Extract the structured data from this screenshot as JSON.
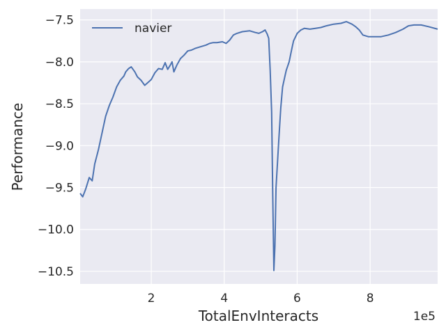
{
  "chart_data": {
    "type": "line",
    "xlabel": "TotalEnvInteracts",
    "ylabel": "Performance",
    "x_offset_label": "1e5",
    "xlim": [
      0.05,
      9.85
    ],
    "ylim": [
      -10.65,
      -7.37
    ],
    "x_ticks": [
      2,
      4,
      6,
      8
    ],
    "x_tick_labels": [
      "2",
      "4",
      "6",
      "8"
    ],
    "y_ticks": [
      -7.5,
      -8.0,
      -8.5,
      -9.0,
      -9.5,
      -10.0,
      -10.5
    ],
    "y_tick_labels": [
      "−7.5",
      "−8.0",
      "−8.5",
      "−9.0",
      "−9.5",
      "−10.0",
      "−10.5"
    ],
    "grid": true,
    "legend": {
      "position": "upper-left"
    },
    "series": [
      {
        "name": "navier",
        "color": "#4c72b0",
        "points": [
          [
            0.05,
            -9.57
          ],
          [
            0.12,
            -9.61
          ],
          [
            0.2,
            -9.52
          ],
          [
            0.3,
            -9.38
          ],
          [
            0.38,
            -9.42
          ],
          [
            0.45,
            -9.22
          ],
          [
            0.55,
            -9.05
          ],
          [
            0.65,
            -8.85
          ],
          [
            0.75,
            -8.65
          ],
          [
            0.85,
            -8.52
          ],
          [
            0.95,
            -8.42
          ],
          [
            1.05,
            -8.3
          ],
          [
            1.15,
            -8.22
          ],
          [
            1.25,
            -8.17
          ],
          [
            1.3,
            -8.12
          ],
          [
            1.38,
            -8.08
          ],
          [
            1.45,
            -8.06
          ],
          [
            1.55,
            -8.12
          ],
          [
            1.62,
            -8.18
          ],
          [
            1.72,
            -8.22
          ],
          [
            1.82,
            -8.28
          ],
          [
            1.9,
            -8.25
          ],
          [
            2.0,
            -8.21
          ],
          [
            2.1,
            -8.13
          ],
          [
            2.2,
            -8.08
          ],
          [
            2.3,
            -8.09
          ],
          [
            2.38,
            -8.01
          ],
          [
            2.45,
            -8.09
          ],
          [
            2.52,
            -8.04
          ],
          [
            2.57,
            -8.0
          ],
          [
            2.62,
            -8.12
          ],
          [
            2.7,
            -8.04
          ],
          [
            2.8,
            -7.96
          ],
          [
            2.9,
            -7.92
          ],
          [
            3.0,
            -7.87
          ],
          [
            3.1,
            -7.86
          ],
          [
            3.2,
            -7.84
          ],
          [
            3.35,
            -7.82
          ],
          [
            3.5,
            -7.8
          ],
          [
            3.6,
            -7.78
          ],
          [
            3.7,
            -7.77
          ],
          [
            3.8,
            -7.77
          ],
          [
            3.95,
            -7.76
          ],
          [
            4.05,
            -7.78
          ],
          [
            4.15,
            -7.74
          ],
          [
            4.25,
            -7.68
          ],
          [
            4.35,
            -7.66
          ],
          [
            4.5,
            -7.64
          ],
          [
            4.7,
            -7.63
          ],
          [
            4.85,
            -7.65
          ],
          [
            4.95,
            -7.66
          ],
          [
            5.05,
            -7.64
          ],
          [
            5.12,
            -7.62
          ],
          [
            5.18,
            -7.67
          ],
          [
            5.22,
            -7.72
          ],
          [
            5.26,
            -8.1
          ],
          [
            5.3,
            -8.6
          ],
          [
            5.33,
            -9.6
          ],
          [
            5.36,
            -10.49
          ],
          [
            5.39,
            -10.2
          ],
          [
            5.42,
            -9.5
          ],
          [
            5.46,
            -9.2
          ],
          [
            5.5,
            -8.9
          ],
          [
            5.55,
            -8.55
          ],
          [
            5.6,
            -8.3
          ],
          [
            5.65,
            -8.2
          ],
          [
            5.7,
            -8.1
          ],
          [
            5.78,
            -8.0
          ],
          [
            5.85,
            -7.85
          ],
          [
            5.9,
            -7.75
          ],
          [
            6.0,
            -7.66
          ],
          [
            6.1,
            -7.62
          ],
          [
            6.2,
            -7.6
          ],
          [
            6.35,
            -7.61
          ],
          [
            6.5,
            -7.6
          ],
          [
            6.65,
            -7.59
          ],
          [
            6.8,
            -7.57
          ],
          [
            7.0,
            -7.55
          ],
          [
            7.2,
            -7.54
          ],
          [
            7.35,
            -7.52
          ],
          [
            7.5,
            -7.55
          ],
          [
            7.6,
            -7.58
          ],
          [
            7.7,
            -7.62
          ],
          [
            7.8,
            -7.68
          ],
          [
            7.95,
            -7.7
          ],
          [
            8.1,
            -7.7
          ],
          [
            8.3,
            -7.7
          ],
          [
            8.5,
            -7.68
          ],
          [
            8.7,
            -7.65
          ],
          [
            8.9,
            -7.61
          ],
          [
            9.05,
            -7.57
          ],
          [
            9.2,
            -7.56
          ],
          [
            9.4,
            -7.56
          ],
          [
            9.6,
            -7.58
          ],
          [
            9.85,
            -7.61
          ]
        ]
      }
    ]
  }
}
